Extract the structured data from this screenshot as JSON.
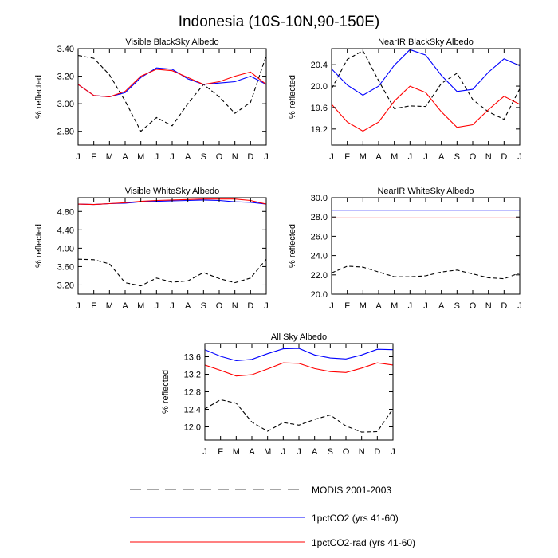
{
  "figure": {
    "title": "Indonesia (10S-10N,90-150E)",
    "ylabel": "% reflected"
  },
  "months": [
    "J",
    "F",
    "M",
    "A",
    "M",
    "J",
    "J",
    "A",
    "S",
    "O",
    "N",
    "D",
    "J"
  ],
  "legend": [
    {
      "label": "MODIS 2001-2003",
      "color": "#000000",
      "dash": true
    },
    {
      "label": "1pctCO2 (yrs 41-60)",
      "color": "#0000ff",
      "dash": false
    },
    {
      "label": "1pctCO2-rad (yrs 41-60)",
      "color": "#ff0000",
      "dash": false
    }
  ],
  "chart_data": [
    {
      "type": "line",
      "title": "Visible BlackSky Albedo",
      "ylabel": "% reflected",
      "ylim": [
        2.7,
        3.4
      ],
      "yticks": [
        2.8,
        3.0,
        3.2,
        3.4
      ],
      "ytick_labels": [
        "2.80",
        "3.00",
        "3.20",
        "3.40"
      ],
      "series": [
        {
          "name": "MODIS 2001-2003",
          "color": "#000000",
          "dash": true,
          "values": [
            3.35,
            3.33,
            3.21,
            3.02,
            2.8,
            2.9,
            2.84,
            3.0,
            3.14,
            3.05,
            2.93,
            3.01,
            3.35
          ]
        },
        {
          "name": "1pctCO2 (yrs 41-60)",
          "color": "#0000ff",
          "dash": false,
          "values": [
            3.14,
            3.06,
            3.05,
            3.08,
            3.19,
            3.26,
            3.25,
            3.18,
            3.14,
            3.15,
            3.16,
            3.2,
            3.14
          ]
        },
        {
          "name": "1pctCO2-rad (yrs 41-60)",
          "color": "#ff0000",
          "dash": false,
          "values": [
            3.14,
            3.06,
            3.05,
            3.09,
            3.2,
            3.25,
            3.24,
            3.19,
            3.14,
            3.16,
            3.2,
            3.23,
            3.14
          ]
        }
      ]
    },
    {
      "type": "line",
      "title": "NearIR BlackSky Albedo",
      "ylabel": "% reflected",
      "ylim": [
        18.9,
        20.7
      ],
      "yticks": [
        19.2,
        19.6,
        20.0,
        20.4
      ],
      "ytick_labels": [
        "19.2",
        "19.6",
        "20.0",
        "20.4"
      ],
      "series": [
        {
          "name": "MODIS 2001-2003",
          "color": "#000000",
          "dash": true,
          "values": [
            19.95,
            20.5,
            20.66,
            20.1,
            19.58,
            19.63,
            19.62,
            20.05,
            20.24,
            19.75,
            19.52,
            19.38,
            19.95
          ]
        },
        {
          "name": "1pctCO2 (yrs 41-60)",
          "color": "#0000ff",
          "dash": false,
          "values": [
            20.32,
            20.02,
            19.83,
            20.0,
            20.39,
            20.68,
            20.58,
            20.2,
            19.9,
            19.94,
            20.26,
            20.51,
            20.38
          ]
        },
        {
          "name": "1pctCO2-rad (yrs 41-60)",
          "color": "#ff0000",
          "dash": false,
          "values": [
            19.66,
            19.33,
            19.16,
            19.33,
            19.72,
            20.0,
            19.88,
            19.52,
            19.23,
            19.28,
            19.56,
            19.81,
            19.66
          ]
        }
      ]
    },
    {
      "type": "line",
      "title": "Visible WhiteSky Albedo",
      "ylabel": "% reflected",
      "ylim": [
        3.0,
        5.1
      ],
      "yticks": [
        3.2,
        3.6,
        4.0,
        4.4,
        4.8
      ],
      "ytick_labels": [
        "3.20",
        "3.60",
        "4.00",
        "4.40",
        "4.80"
      ],
      "series": [
        {
          "name": "MODIS 2001-2003",
          "color": "#000000",
          "dash": true,
          "values": [
            3.76,
            3.75,
            3.66,
            3.25,
            3.18,
            3.35,
            3.26,
            3.29,
            3.47,
            3.34,
            3.25,
            3.35,
            3.76
          ]
        },
        {
          "name": "1pctCO2 (yrs 41-60)",
          "color": "#0000ff",
          "dash": false,
          "values": [
            4.96,
            4.95,
            4.97,
            4.98,
            5.01,
            5.02,
            5.03,
            5.04,
            5.05,
            5.04,
            5.01,
            5.0,
            4.96
          ]
        },
        {
          "name": "1pctCO2-rad (yrs 41-60)",
          "color": "#ff0000",
          "dash": false,
          "values": [
            4.96,
            4.95,
            4.97,
            4.99,
            5.02,
            5.04,
            5.05,
            5.06,
            5.07,
            5.07,
            5.07,
            5.04,
            4.96
          ]
        }
      ]
    },
    {
      "type": "line",
      "title": "NearIR WhiteSky Albedo",
      "ylabel": "% reflected",
      "ylim": [
        20.0,
        30.0
      ],
      "yticks": [
        20.0,
        22.0,
        24.0,
        26.0,
        28.0,
        30.0
      ],
      "ytick_labels": [
        "20.0",
        "22.0",
        "24.0",
        "26.0",
        "28.0",
        "30.0"
      ],
      "series": [
        {
          "name": "MODIS 2001-2003",
          "color": "#000000",
          "dash": true,
          "values": [
            22.2,
            22.9,
            22.8,
            22.3,
            21.8,
            21.8,
            21.9,
            22.3,
            22.5,
            22.1,
            21.7,
            21.6,
            22.2
          ]
        },
        {
          "name": "1pctCO2 (yrs 41-60)",
          "color": "#0000ff",
          "dash": false,
          "values": [
            28.7,
            28.7,
            28.7,
            28.7,
            28.7,
            28.7,
            28.7,
            28.7,
            28.7,
            28.7,
            28.7,
            28.7,
            28.7
          ]
        },
        {
          "name": "1pctCO2-rad (yrs 41-60)",
          "color": "#ff0000",
          "dash": false,
          "values": [
            27.9,
            27.9,
            27.9,
            27.9,
            27.9,
            27.9,
            27.9,
            27.9,
            27.9,
            27.9,
            27.9,
            27.9,
            27.9
          ]
        }
      ]
    },
    {
      "type": "line",
      "title": "All Sky Albedo",
      "ylabel": "% reflected",
      "ylim": [
        11.7,
        13.9
      ],
      "yticks": [
        12.0,
        12.4,
        12.8,
        13.2,
        13.6
      ],
      "ytick_labels": [
        "12.0",
        "12.4",
        "12.8",
        "13.2",
        "13.6"
      ],
      "series": [
        {
          "name": "MODIS 2001-2003",
          "color": "#000000",
          "dash": true,
          "values": [
            12.41,
            12.62,
            12.54,
            12.11,
            11.9,
            12.1,
            12.04,
            12.17,
            12.27,
            12.02,
            11.88,
            11.89,
            12.41
          ]
        },
        {
          "name": "1pctCO2 (yrs 41-60)",
          "color": "#0000ff",
          "dash": false,
          "values": [
            13.76,
            13.61,
            13.51,
            13.54,
            13.67,
            13.78,
            13.79,
            13.64,
            13.57,
            13.55,
            13.64,
            13.77,
            13.76
          ]
        },
        {
          "name": "1pctCO2-rad (yrs 41-60)",
          "color": "#ff0000",
          "dash": false,
          "values": [
            13.41,
            13.29,
            13.16,
            13.19,
            13.32,
            13.46,
            13.45,
            13.33,
            13.26,
            13.24,
            13.34,
            13.46,
            13.41
          ]
        }
      ]
    }
  ]
}
